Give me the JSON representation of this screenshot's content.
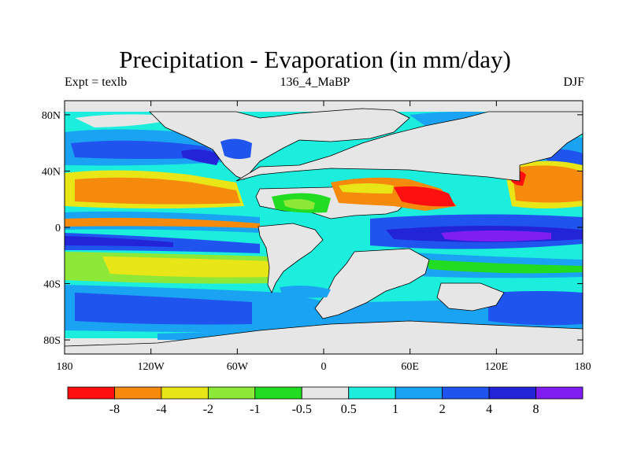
{
  "title": "Precipitation - Evaporation (in mm/day)",
  "subtitle_left": "Expt = texlb",
  "subtitle_center": "136_4_MaBP",
  "subtitle_right": "DJF",
  "x_axis": {
    "labels": [
      "180",
      "120W",
      "60W",
      "0",
      "60E",
      "120E",
      "180"
    ],
    "lon": [
      -180,
      -120,
      -60,
      0,
      60,
      120,
      180
    ]
  },
  "y_axis": {
    "labels": [
      "80N",
      "40N",
      "0",
      "40S",
      "80S"
    ],
    "lat": [
      80,
      40,
      0,
      -40,
      -80
    ]
  },
  "colorbar": {
    "colors": [
      "#ff1010",
      "#f58a0c",
      "#e8e617",
      "#8ee838",
      "#22dc22",
      "#e6e6e6",
      "#1beedc",
      "#1aa3f2",
      "#1f55ee",
      "#2323d8",
      "#7f1eee"
    ],
    "labels": [
      "-8",
      "-4",
      "-2",
      "-1",
      "-0.5",
      "0.5",
      "1",
      "2",
      "4",
      "8"
    ]
  }
}
